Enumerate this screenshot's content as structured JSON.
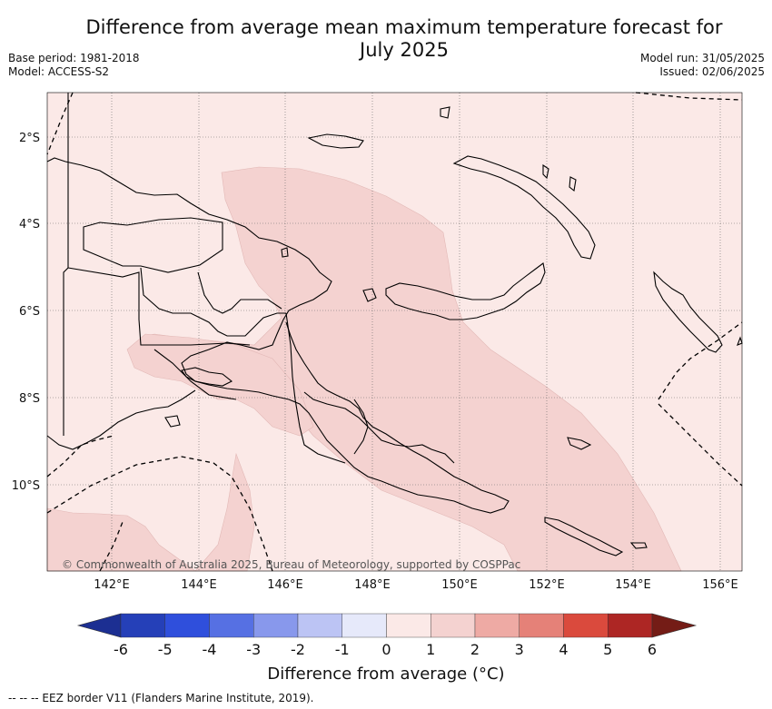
{
  "title": "Difference from average mean maximum temperature forecast for July 2025",
  "meta_left": [
    "Base period: 1981-2018",
    "Model: ACCESS-S2"
  ],
  "meta_right": [
    "Model run: 31/05/2025",
    "Issued: 02/06/2025"
  ],
  "map": {
    "lat_ticks": [
      "2°S",
      "4°S",
      "6°S",
      "8°S",
      "10°S"
    ],
    "lon_ticks": [
      "142°E",
      "144°E",
      "146°E",
      "148°E",
      "150°E",
      "152°E",
      "154°E",
      "156°E"
    ],
    "copyright": "© Commonwealth of Australia 2025, Bureau of Meteorology, supported by COSPPac",
    "background_color": "#fbe9e7",
    "anomaly_color": "#f4d2d0"
  },
  "colorbar": {
    "title": "Difference from average (°C)",
    "ticks": [
      "-6",
      "-5",
      "-4",
      "-3",
      "-2",
      "-1",
      "0",
      "1",
      "2",
      "3",
      "4",
      "5",
      "6"
    ],
    "colors": [
      "#1c2f92",
      "#2540b8",
      "#2f4fdc",
      "#5670e3",
      "#8898ec",
      "#bcc4f4",
      "#e6e9fa",
      "#fbe9e7",
      "#f4d2d0",
      "#eeaaa4",
      "#e58178",
      "#da4a3d",
      "#ad2624",
      "#741c16"
    ]
  },
  "footer": "-- -- -- EEZ border V11 (Flanders Marine Institute, 2019)."
}
